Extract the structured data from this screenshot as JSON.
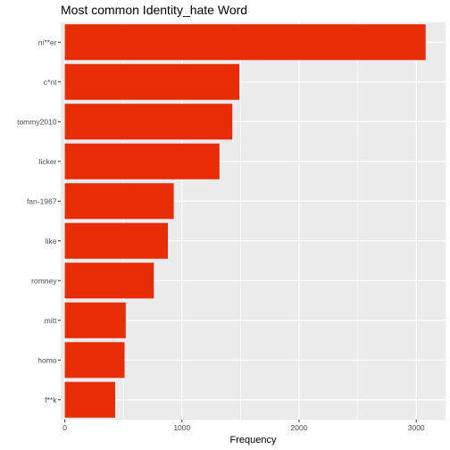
{
  "chart_data": {
    "type": "bar",
    "orientation": "horizontal",
    "title": "Most common Identity_hate Word",
    "xlabel": "Frequency",
    "ylabel": "",
    "categories": [
      "ni**er",
      "c*nt",
      "tommy2010",
      "licker",
      "fan-1967",
      "like",
      "romney",
      "mitt",
      "homo",
      "f**k"
    ],
    "values": [
      3080,
      1490,
      1430,
      1320,
      930,
      880,
      760,
      520,
      510,
      430
    ],
    "xlim": [
      -35,
      3250
    ],
    "xticks": [
      0,
      1000,
      2000,
      3000
    ],
    "grid": true,
    "legend": "none",
    "bar_color": "#e82c06",
    "panel_background": "#ebebeb",
    "grid_color": "#ffffff"
  }
}
